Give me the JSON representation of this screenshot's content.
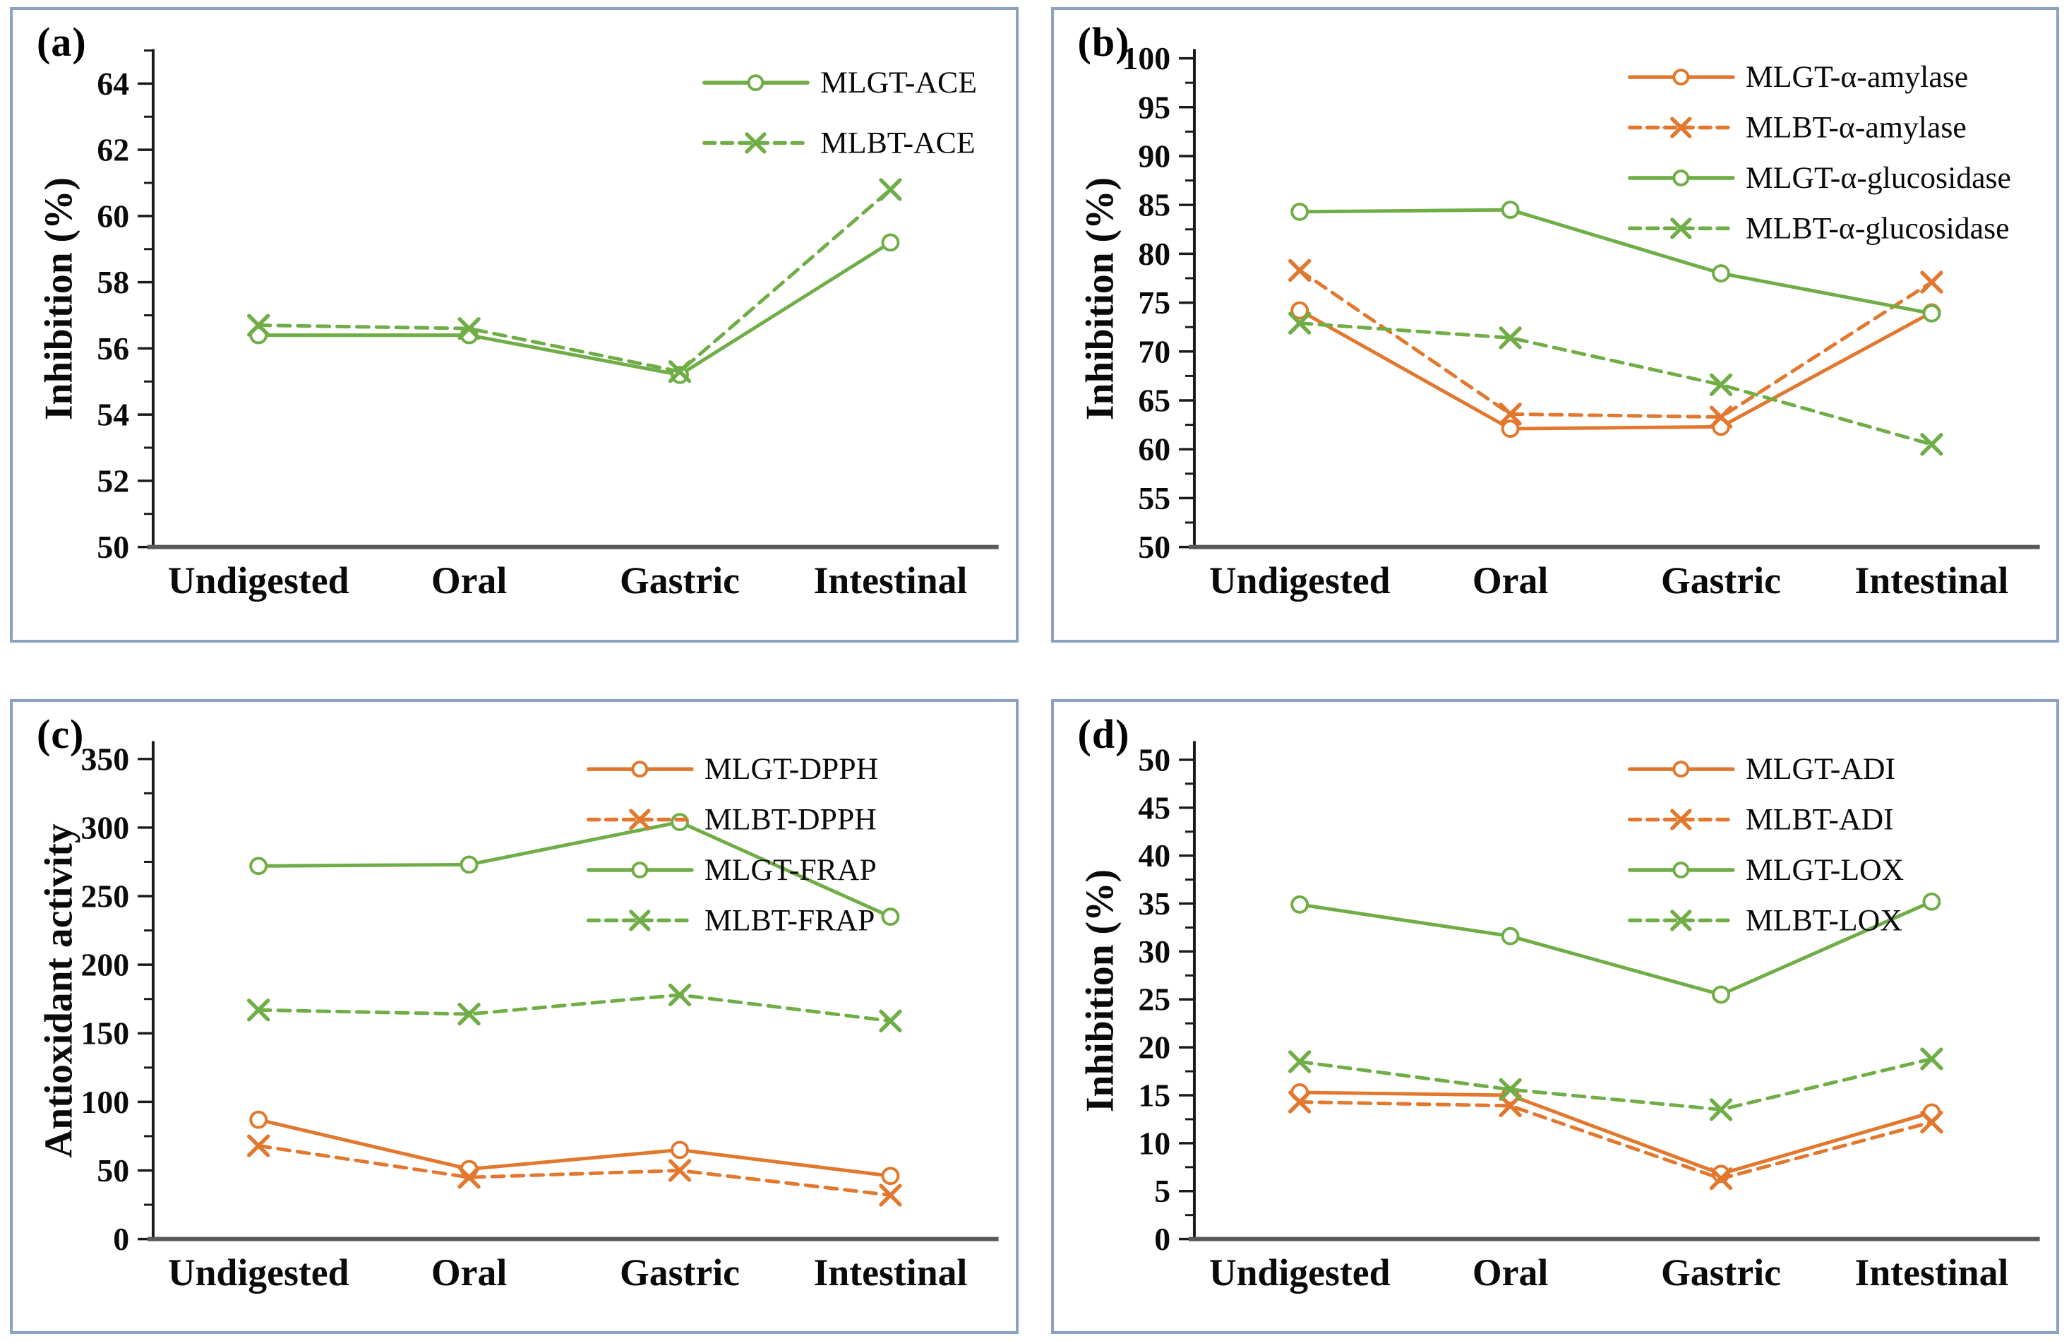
{
  "colors": {
    "orange": "#E2772E",
    "green": "#6FAD47",
    "y_axis": "#1A1A1A",
    "x_axis": "#58595B",
    "text": "#0A0A0A",
    "panel_border": "#8AA2C4",
    "background": "#FFFFFF"
  },
  "x_categories": [
    "Undigested",
    "Oral",
    "Gastric",
    "Intestinal"
  ],
  "chart_data": [
    {
      "type": "line",
      "panel_label": "(a)",
      "title": "",
      "xlabel": "",
      "ylabel": "Inhibition (%)",
      "categories": [
        "Undigested",
        "Oral",
        "Gastric",
        "Intestinal"
      ],
      "ylim": [
        50,
        65
      ],
      "grid": false,
      "legend_position": "top-right",
      "yticks": {
        "values": [
          50,
          52,
          54,
          56,
          58,
          60,
          62,
          64
        ],
        "labels": [
          "50",
          "52",
          "54",
          "56",
          "58",
          "60",
          "62",
          "64"
        ],
        "minor_step": 1
      },
      "series": [
        {
          "name": "MLGT-ACE",
          "color_key": "green",
          "line_style": "solid",
          "marker": "circle",
          "values": [
            56.4,
            56.4,
            55.2,
            59.2
          ]
        },
        {
          "name": "MLBT-ACE",
          "color_key": "green",
          "line_style": "dashed",
          "marker": "x",
          "values": [
            56.7,
            56.6,
            55.3,
            60.8
          ]
        }
      ]
    },
    {
      "type": "line",
      "panel_label": "(b)",
      "title": "",
      "xlabel": "",
      "ylabel": "Inhibition (%)",
      "categories": [
        "Undigested",
        "Oral",
        "Gastric",
        "Intestinal"
      ],
      "ylim": [
        50,
        100.8
      ],
      "grid": false,
      "legend_position": "top-right",
      "yticks": {
        "values": [
          50,
          55,
          60,
          65,
          70,
          75,
          80,
          85,
          90,
          95,
          100
        ],
        "labels": [
          "50",
          "55",
          "60",
          "65",
          "70",
          "75",
          "80",
          "85",
          "90",
          "95",
          "100"
        ],
        "minor_step": 2.5
      },
      "series": [
        {
          "name": "MLGT-α-amylase",
          "color_key": "orange",
          "line_style": "solid",
          "marker": "circle",
          "values": [
            74.2,
            62.1,
            62.3,
            74.0
          ]
        },
        {
          "name": "MLBT-α-amylase",
          "color_key": "orange",
          "line_style": "dashed",
          "marker": "x",
          "values": [
            78.3,
            63.6,
            63.3,
            77.1
          ]
        },
        {
          "name": "MLGT-α-glucosidase",
          "color_key": "green",
          "line_style": "solid",
          "marker": "circle",
          "values": [
            84.3,
            84.5,
            78.0,
            73.9
          ]
        },
        {
          "name": "MLBT-α-glucosidase",
          "color_key": "green",
          "line_style": "dashed",
          "marker": "x",
          "values": [
            72.9,
            71.4,
            66.6,
            60.5
          ]
        }
      ]
    },
    {
      "type": "line",
      "panel_label": "(c)",
      "title": "",
      "xlabel": "",
      "ylabel": "Antioxidant activity",
      "categories": [
        "Undigested",
        "Oral",
        "Gastric",
        "Intestinal"
      ],
      "ylim": [
        0,
        362
      ],
      "grid": false,
      "legend_position": "top-right",
      "yticks": {
        "values": [
          0,
          50,
          100,
          150,
          200,
          250,
          300,
          350
        ],
        "labels": [
          "0",
          "50",
          "100",
          "150",
          "200",
          "250",
          "300",
          "350"
        ],
        "minor_step": 25
      },
      "series": [
        {
          "name": "MLGT-DPPH",
          "color_key": "orange",
          "line_style": "solid",
          "marker": "circle",
          "values": [
            87,
            51,
            65,
            46
          ]
        },
        {
          "name": "MLBT-DPPH",
          "color_key": "orange",
          "line_style": "dashed",
          "marker": "x",
          "values": [
            68,
            45,
            50,
            32
          ]
        },
        {
          "name": "MLGT-FRAP",
          "color_key": "green",
          "line_style": "solid",
          "marker": "circle",
          "values": [
            272,
            273,
            304,
            235
          ]
        },
        {
          "name": "MLBT-FRAP",
          "color_key": "green",
          "line_style": "dashed",
          "marker": "x",
          "values": [
            167,
            164,
            178,
            159
          ]
        }
      ]
    },
    {
      "type": "line",
      "panel_label": "(d)",
      "title": "",
      "xlabel": "",
      "ylabel": "Inhibition (%)",
      "categories": [
        "Undigested",
        "Oral",
        "Gastric",
        "Intestinal"
      ],
      "ylim": [
        0,
        51.8
      ],
      "grid": false,
      "legend_position": "top-right",
      "yticks": {
        "values": [
          0,
          5,
          10,
          15,
          20,
          25,
          30,
          35,
          40,
          45,
          50
        ],
        "labels": [
          "0",
          "5",
          "10",
          "15",
          "20",
          "25",
          "30",
          "35",
          "40",
          "45",
          "50"
        ],
        "minor_step": 2.5
      },
      "series": [
        {
          "name": "MLGT-ADI",
          "color_key": "orange",
          "line_style": "solid",
          "marker": "circle",
          "values": [
            15.3,
            15.0,
            6.8,
            13.2
          ]
        },
        {
          "name": "MLBT-ADI",
          "color_key": "orange",
          "line_style": "dashed",
          "marker": "x",
          "values": [
            14.3,
            13.9,
            6.3,
            12.2
          ]
        },
        {
          "name": "MLGT-LOX",
          "color_key": "green",
          "line_style": "solid",
          "marker": "circle",
          "values": [
            34.9,
            31.6,
            25.5,
            35.2
          ]
        },
        {
          "name": "MLBT-LOX",
          "color_key": "green",
          "line_style": "dashed",
          "marker": "x",
          "values": [
            18.5,
            15.6,
            13.5,
            18.8
          ]
        }
      ]
    }
  ]
}
